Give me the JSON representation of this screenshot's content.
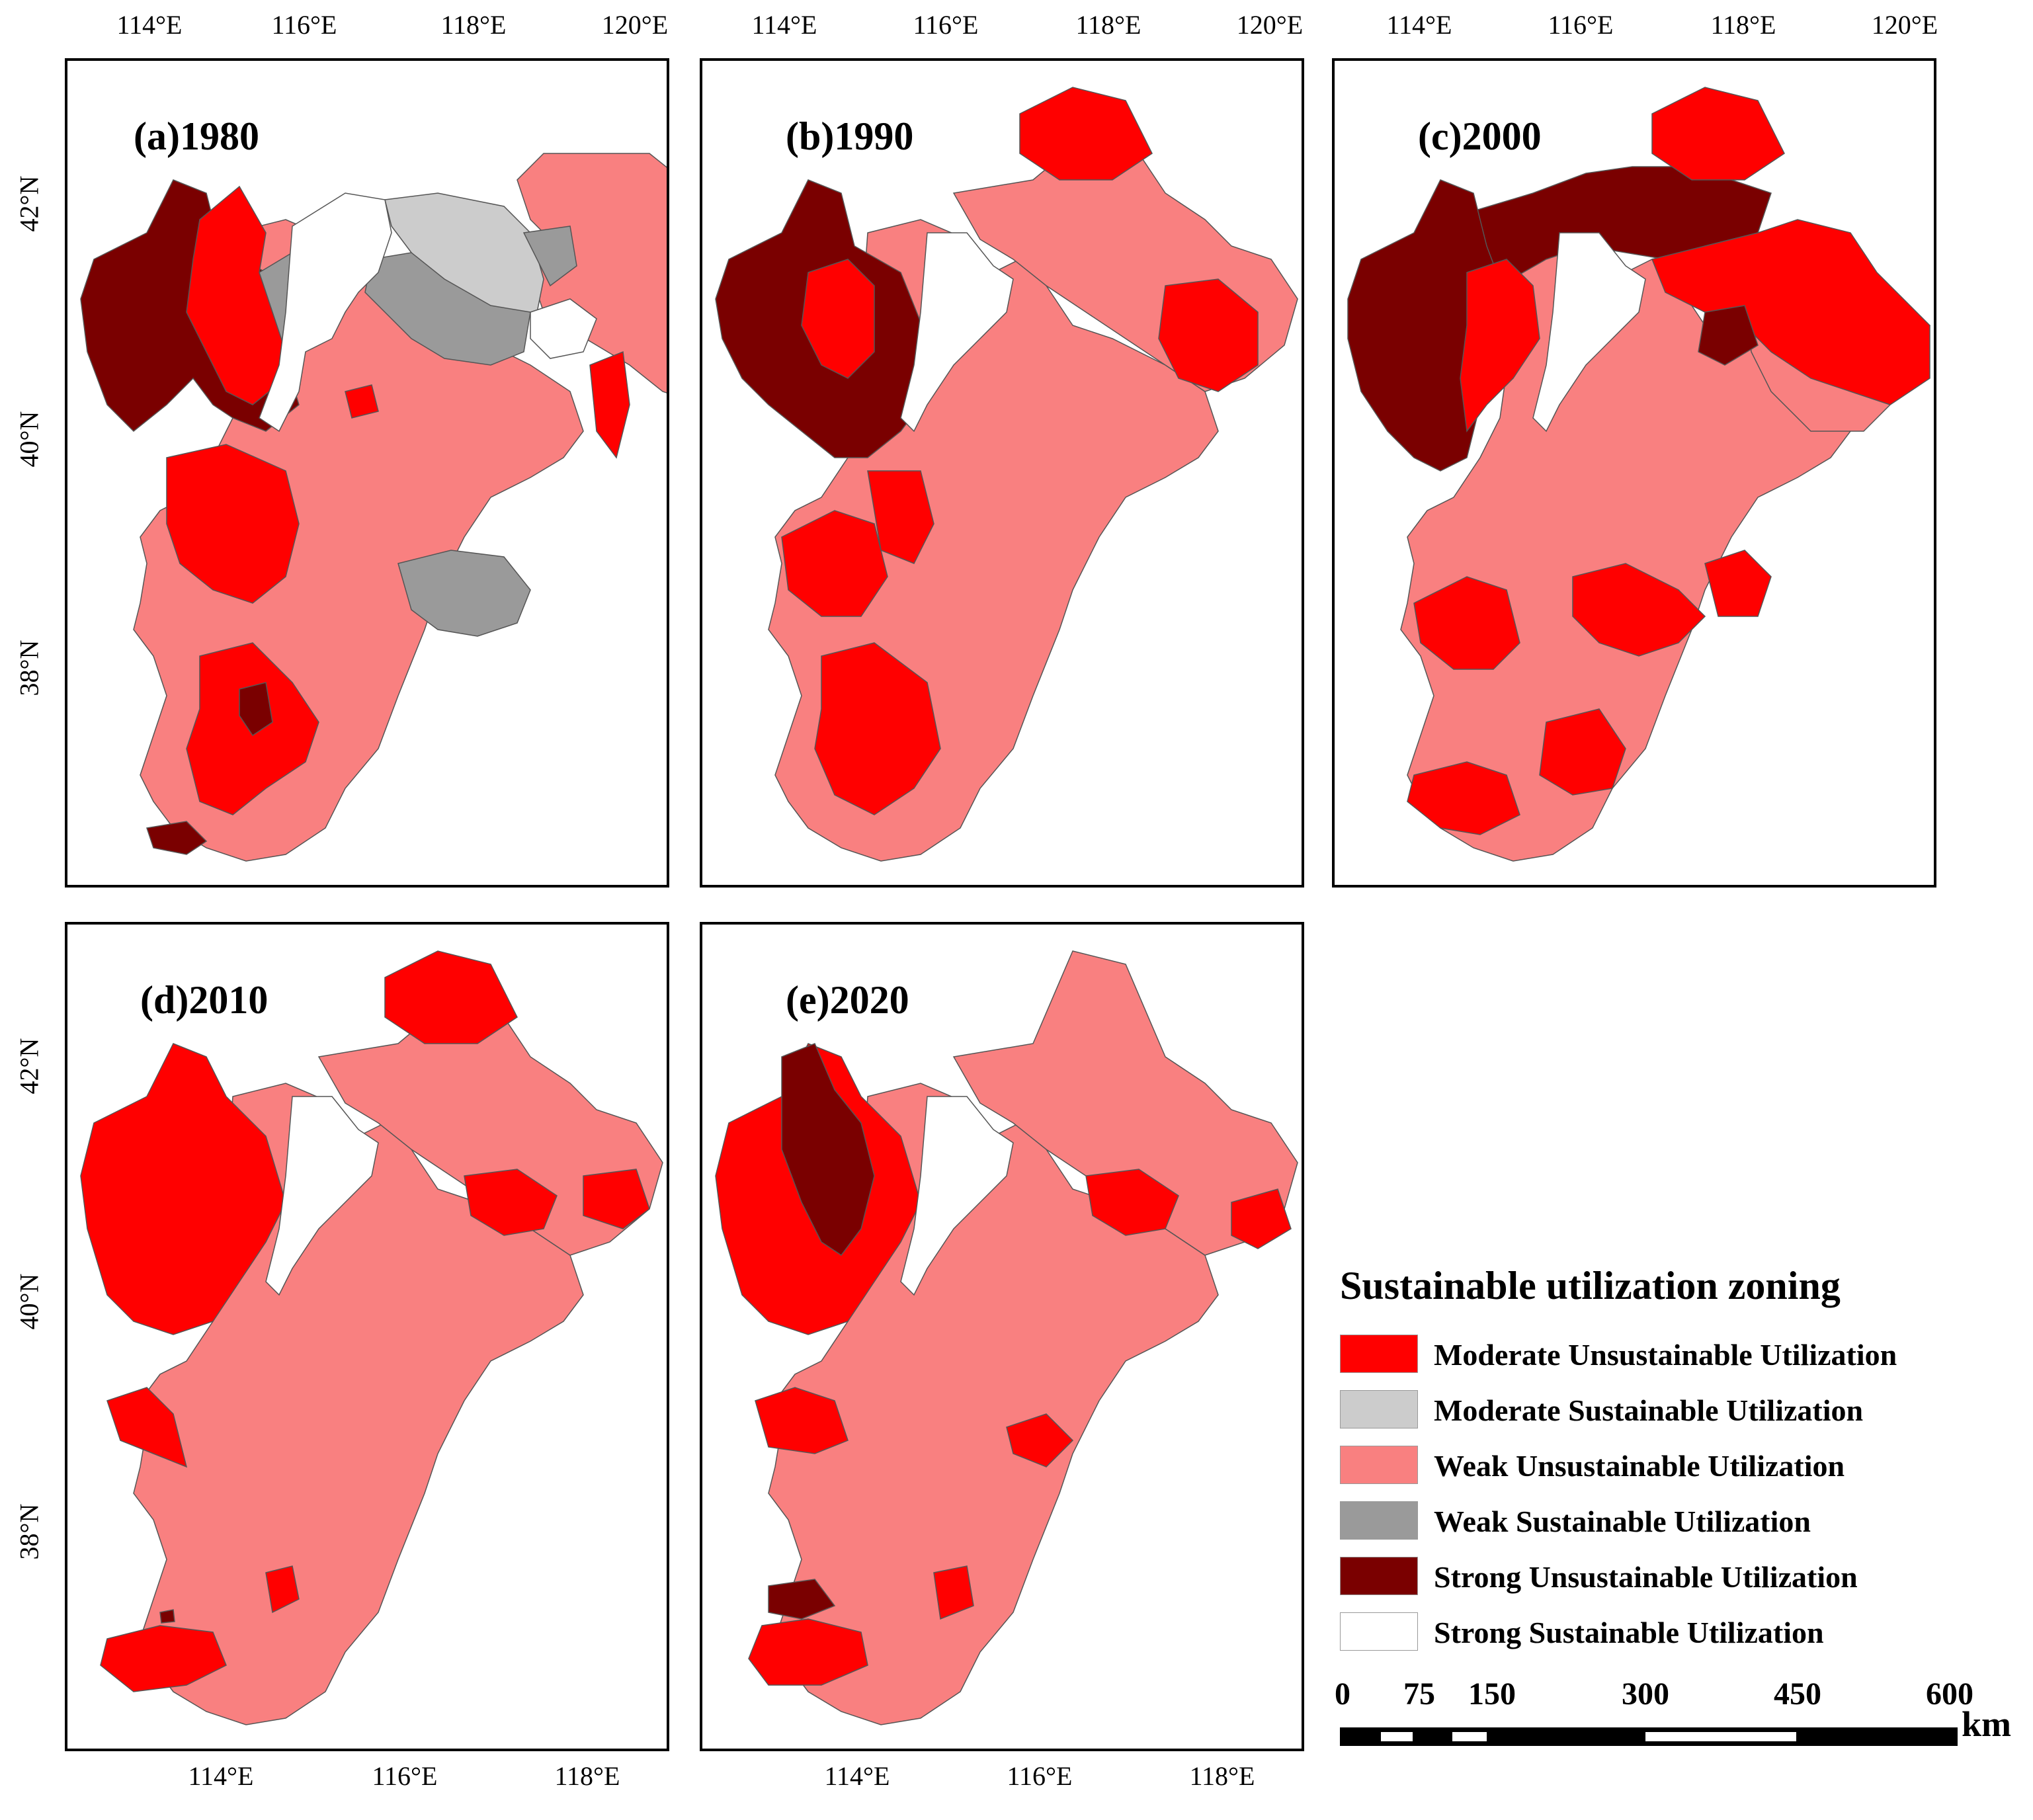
{
  "colors": {
    "moderate_unsustainable": "#ff0000",
    "moderate_sustainable": "#cccccc",
    "weak_unsustainable": "#f98080",
    "weak_sustainable": "#9a9a9a",
    "strong_unsustainable": "#7a0000",
    "strong_sustainable": "#ffffff",
    "boundary": "#555555"
  },
  "panels": [
    {
      "label": "(a)1980",
      "lon_ticks": [
        "114°E",
        "116°E",
        "118°E",
        "120°E"
      ],
      "lat_ticks": [
        "42°N",
        "40°N",
        "38°N"
      ]
    },
    {
      "label": "(b)1990",
      "lon_ticks": [
        "114°E",
        "116°E",
        "118°E",
        "120°E"
      ]
    },
    {
      "label": "(c)2000",
      "lon_ticks": [
        "114°E",
        "116°E",
        "118°E",
        "120°E"
      ]
    },
    {
      "label": "(d)2010",
      "lon_ticks": [
        "114°E",
        "116°E",
        "118°E"
      ],
      "lat_ticks": [
        "42°N",
        "40°N",
        "38°N"
      ]
    },
    {
      "label": "(e)2020",
      "lon_ticks": [
        "114°E",
        "116°E",
        "118°E"
      ]
    }
  ],
  "legend": {
    "title": "Sustainable utilization zoning",
    "items": [
      {
        "label": "Moderate Unsustainable Utilization",
        "color": "#ff0000"
      },
      {
        "label": "Moderate Sustainable Utilization",
        "color": "#cccccc"
      },
      {
        "label": "Weak Unsustainable Utilization",
        "color": "#f98080"
      },
      {
        "label": "Weak Sustainable Utilization",
        "color": "#9a9a9a"
      },
      {
        "label": "Strong Unsustainable Utilization",
        "color": "#7a0000"
      },
      {
        "label": "Strong Sustainable Utilization",
        "color": "#ffffff"
      }
    ]
  },
  "scale_bar": {
    "labels": [
      "0",
      "75",
      "150",
      "300",
      "450",
      "600"
    ],
    "unit": "km"
  }
}
